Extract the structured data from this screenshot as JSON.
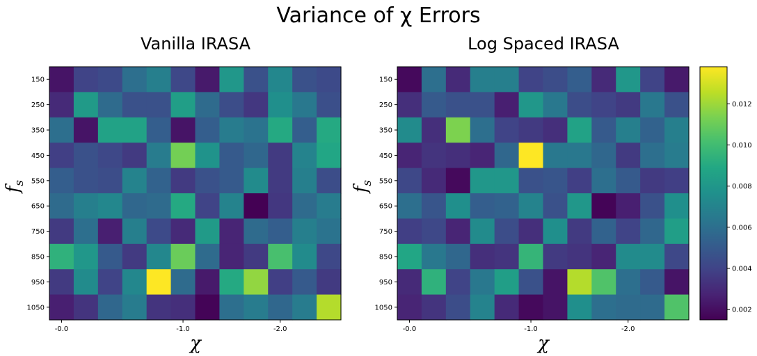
{
  "figure": {
    "title": "Variance of χ Errors"
  },
  "chart_data": [
    {
      "type": "heatmap",
      "title": "Vanilla IRASA",
      "xlabel": "χ",
      "ylabel": "f_s",
      "x_tick_labels": [
        "-0.0",
        "-1.0",
        "-2.0"
      ],
      "y_tick_labels": [
        "150",
        "250",
        "350",
        "450",
        "550",
        "650",
        "750",
        "850",
        "950",
        "1050"
      ],
      "colormap": "viridis",
      "vmin": 0.0015,
      "vmax": 0.0138,
      "values": [
        [
          0.0022,
          0.004,
          0.0043,
          0.006,
          0.0068,
          0.0042,
          0.0024,
          0.008,
          0.0046,
          0.0072,
          0.0046,
          0.0043
        ],
        [
          0.003,
          0.0082,
          0.0058,
          0.0046,
          0.0046,
          0.0084,
          0.0058,
          0.0044,
          0.0035,
          0.0076,
          0.0064,
          0.0045
        ],
        [
          0.006,
          0.0022,
          0.0086,
          0.0086,
          0.0052,
          0.0022,
          0.0052,
          0.0066,
          0.0062,
          0.009,
          0.0052,
          0.009
        ],
        [
          0.0038,
          0.0046,
          0.0042,
          0.0036,
          0.0066,
          0.0112,
          0.0078,
          0.005,
          0.0056,
          0.0036,
          0.007,
          0.0088
        ],
        [
          0.0052,
          0.0046,
          0.0044,
          0.007,
          0.0054,
          0.0036,
          0.0046,
          0.005,
          0.0074,
          0.0036,
          0.0068,
          0.0044
        ],
        [
          0.0058,
          0.0068,
          0.0072,
          0.0056,
          0.0058,
          0.009,
          0.004,
          0.007,
          0.0015,
          0.0035,
          0.0058,
          0.0066
        ],
        [
          0.0036,
          0.006,
          0.0026,
          0.0068,
          0.0043,
          0.003,
          0.0082,
          0.0028,
          0.0058,
          0.0052,
          0.0068,
          0.0062
        ],
        [
          0.0094,
          0.008,
          0.005,
          0.0036,
          0.0072,
          0.011,
          0.0058,
          0.0028,
          0.0036,
          0.0102,
          0.0074,
          0.0042
        ],
        [
          0.0036,
          0.0074,
          0.004,
          0.0072,
          0.0138,
          0.0058,
          0.0024,
          0.009,
          0.0118,
          0.0038,
          0.005,
          0.0036
        ],
        [
          0.0026,
          0.0034,
          0.0056,
          0.0066,
          0.0034,
          0.0032,
          0.0016,
          0.006,
          0.0066,
          0.0056,
          0.0066,
          0.0124
        ]
      ]
    },
    {
      "type": "heatmap",
      "title": "Log Spaced IRASA",
      "xlabel": "χ",
      "ylabel": "f_s",
      "x_tick_labels": [
        "-0.0",
        "-1.0",
        "-2.0"
      ],
      "y_tick_labels": [
        "150",
        "250",
        "350",
        "450",
        "550",
        "650",
        "750",
        "850",
        "950",
        "1050"
      ],
      "colormap": "viridis",
      "vmin": 0.0015,
      "vmax": 0.0138,
      "values": [
        [
          0.0018,
          0.006,
          0.003,
          0.0068,
          0.0068,
          0.004,
          0.0044,
          0.0052,
          0.003,
          0.008,
          0.004,
          0.0024
        ],
        [
          0.0032,
          0.005,
          0.0046,
          0.0046,
          0.0026,
          0.008,
          0.0064,
          0.0044,
          0.004,
          0.0036,
          0.0064,
          0.0046
        ],
        [
          0.0074,
          0.0032,
          0.0114,
          0.006,
          0.004,
          0.0036,
          0.0032,
          0.0086,
          0.005,
          0.0068,
          0.0054,
          0.0068
        ],
        [
          0.0028,
          0.0034,
          0.0032,
          0.0028,
          0.0056,
          0.0138,
          0.0064,
          0.0064,
          0.0056,
          0.0036,
          0.006,
          0.0066
        ],
        [
          0.0042,
          0.003,
          0.0018,
          0.008,
          0.008,
          0.0046,
          0.0048,
          0.0038,
          0.006,
          0.005,
          0.0036,
          0.0038
        ],
        [
          0.006,
          0.0048,
          0.0076,
          0.0052,
          0.0054,
          0.007,
          0.0046,
          0.008,
          0.0016,
          0.0026,
          0.0046,
          0.0076
        ],
        [
          0.0038,
          0.0042,
          0.0028,
          0.0074,
          0.0044,
          0.0032,
          0.0076,
          0.0036,
          0.0054,
          0.004,
          0.0056,
          0.0084
        ],
        [
          0.0088,
          0.0064,
          0.0056,
          0.0032,
          0.0034,
          0.0096,
          0.0036,
          0.0034,
          0.0028,
          0.0074,
          0.0074,
          0.0042
        ],
        [
          0.003,
          0.0094,
          0.004,
          0.0064,
          0.0084,
          0.0046,
          0.0022,
          0.0124,
          0.0104,
          0.006,
          0.005,
          0.0022
        ],
        [
          0.0028,
          0.0034,
          0.0044,
          0.007,
          0.003,
          0.0018,
          0.0022,
          0.0076,
          0.006,
          0.0058,
          0.0058,
          0.0104
        ]
      ]
    }
  ],
  "colorbar": {
    "tick_labels": [
      "0.002",
      "0.004",
      "0.006",
      "0.008",
      "0.010",
      "0.012"
    ],
    "tick_values": [
      0.002,
      0.004,
      0.006,
      0.008,
      0.01,
      0.012
    ]
  }
}
